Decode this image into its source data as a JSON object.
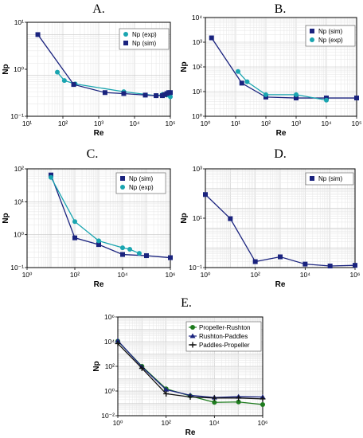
{
  "figure": {
    "panels": [
      "A.",
      "B.",
      "C.",
      "D.",
      "E."
    ]
  },
  "chart_data": [
    {
      "type": "line",
      "title": "A.",
      "xlabel": "Re",
      "ylabel": "Np",
      "xscale": "log",
      "yscale": "log",
      "xlim": [
        10,
        100000
      ],
      "ylim": [
        0.1,
        20
      ],
      "xticks": [
        "10¹",
        "10²",
        "10³",
        "10⁴",
        "10⁵"
      ],
      "yticks": [
        "10⁻¹",
        "10⁰",
        "10¹"
      ],
      "grid": true,
      "legend": "top-right",
      "series": [
        {
          "name": "Np (exp)",
          "color": "#1aa5b0",
          "marker": "circle",
          "x": [
            70,
            110,
            220,
            5000,
            40000,
            60000,
            80000,
            100000
          ],
          "y": [
            1.2,
            0.75,
            0.62,
            0.4,
            0.32,
            0.34,
            0.33,
            0.3
          ]
        },
        {
          "name": "Np (sim)",
          "color": "#1a237e",
          "marker": "square",
          "x": [
            20,
            200,
            1500,
            5000,
            20000,
            40000,
            60000,
            70000,
            80000,
            90000,
            100000
          ],
          "y": [
            10,
            0.6,
            0.38,
            0.36,
            0.33,
            0.32,
            0.32,
            0.34,
            0.36,
            0.38,
            0.38
          ]
        }
      ]
    },
    {
      "type": "line",
      "title": "B.",
      "xlabel": "Re",
      "ylabel": "Np",
      "xscale": "log",
      "yscale": "log",
      "xlim": [
        1,
        100000
      ],
      "ylim": [
        1,
        10000
      ],
      "xticks": [
        "10⁰",
        "10¹",
        "10²",
        "10³",
        "10⁴",
        "10⁵"
      ],
      "yticks": [
        "10⁰",
        "10¹",
        "10²",
        "10³",
        "10⁴"
      ],
      "grid": true,
      "legend": "top-right",
      "series": [
        {
          "name": "Np (sim)",
          "color": "#1a237e",
          "marker": "square",
          "x": [
            1.6,
            16,
            100,
            1000,
            10000,
            100000
          ],
          "y": [
            1500,
            22,
            6,
            5.5,
            5.5,
            5.5
          ]
        },
        {
          "name": "Np (exp)",
          "color": "#1aa5b0",
          "marker": "circle",
          "x": [
            12,
            24,
            100,
            1000,
            10000
          ],
          "y": [
            65,
            25,
            7.5,
            7.5,
            4.5
          ]
        }
      ]
    },
    {
      "type": "line",
      "title": "C.",
      "xlabel": "Re",
      "ylabel": "Np",
      "xscale": "log",
      "yscale": "log",
      "xlim": [
        1,
        1000000
      ],
      "ylim": [
        0.1,
        100
      ],
      "xticks": [
        "10⁰",
        "10²",
        "10⁴",
        "10⁶"
      ],
      "yticks": [
        "10⁻¹",
        "10⁰",
        "10¹",
        "10²"
      ],
      "grid": true,
      "legend": "top-right",
      "series": [
        {
          "name": "Np (sim)",
          "color": "#1a237e",
          "marker": "square",
          "x": [
            10,
            100,
            1000,
            10000,
            100000,
            1000000
          ],
          "y": [
            65,
            0.8,
            0.5,
            0.25,
            0.23,
            0.2
          ]
        },
        {
          "name": "Np (exp)",
          "color": "#1aa5b0",
          "marker": "circle",
          "x": [
            10,
            100,
            1000,
            10000,
            20000,
            50000
          ],
          "y": [
            55,
            2.5,
            0.65,
            0.4,
            0.36,
            0.27
          ]
        }
      ]
    },
    {
      "type": "line",
      "title": "D.",
      "xlabel": "Re",
      "ylabel": "Np",
      "xscale": "log",
      "yscale": "log",
      "xlim": [
        1,
        1000000
      ],
      "ylim": [
        0.1,
        10000
      ],
      "xticks": [
        "10⁰",
        "10²",
        "10⁴",
        "10⁶"
      ],
      "yticks": [
        "10⁻¹",
        "10¹",
        "10³"
      ],
      "grid": true,
      "legend": "top-right",
      "series": [
        {
          "name": "Np (sim)",
          "color": "#1a237e",
          "marker": "square",
          "x": [
            1,
            10,
            100,
            1000,
            10000,
            100000,
            1000000
          ],
          "y": [
            500,
            30,
            0.2,
            0.35,
            0.15,
            0.12,
            0.13
          ]
        }
      ]
    },
    {
      "type": "line",
      "title": "E.",
      "xlabel": "Re",
      "ylabel": "Np",
      "xscale": "log",
      "yscale": "log",
      "xlim": [
        1,
        1000000
      ],
      "ylim": [
        0.01,
        1000000
      ],
      "xticks": [
        "10⁰",
        "10²",
        "10⁴",
        "10⁶"
      ],
      "yticks": [
        "10⁻²",
        "10⁰",
        "10²",
        "10⁴",
        "10⁶"
      ],
      "grid": true,
      "legend": "top-right",
      "series": [
        {
          "name": "Propeller-Rushton",
          "color": "#1e7b1e",
          "marker": "circle",
          "x": [
            1,
            10,
            100,
            1000,
            10000,
            100000,
            1000000
          ],
          "y": [
            11000,
            100,
            1.5,
            0.4,
            0.12,
            0.13,
            0.08
          ]
        },
        {
          "name": "Rushton-Paddles",
          "color": "#1a237e",
          "marker": "triangle",
          "x": [
            1,
            10,
            100,
            1000,
            10000,
            100000,
            1000000
          ],
          "y": [
            12000,
            90,
            1.3,
            0.45,
            0.3,
            0.35,
            0.33
          ]
        },
        {
          "name": "Paddles-Propeller",
          "color": "#111111",
          "marker": "plus",
          "x": [
            1,
            10,
            100,
            1000,
            10000,
            100000,
            1000000
          ],
          "y": [
            7000,
            70,
            0.6,
            0.33,
            0.27,
            0.27,
            0.23
          ]
        }
      ]
    }
  ]
}
